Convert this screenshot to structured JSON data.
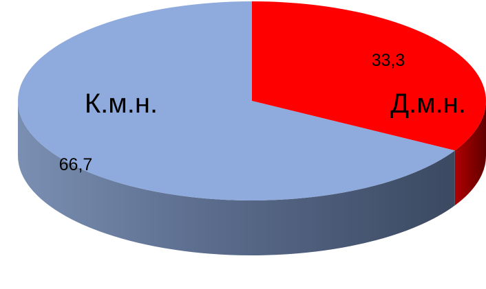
{
  "chart_data": {
    "type": "pie",
    "title": "",
    "slices": [
      {
        "label": "Д.м.н.",
        "value": 33.3,
        "value_text": "33,3",
        "color": "#ff0000"
      },
      {
        "label": "К.м.н.",
        "value": 66.7,
        "value_text": "66,7",
        "color": "#8faadc"
      }
    ],
    "legend": false,
    "style": "3d-tilted"
  }
}
